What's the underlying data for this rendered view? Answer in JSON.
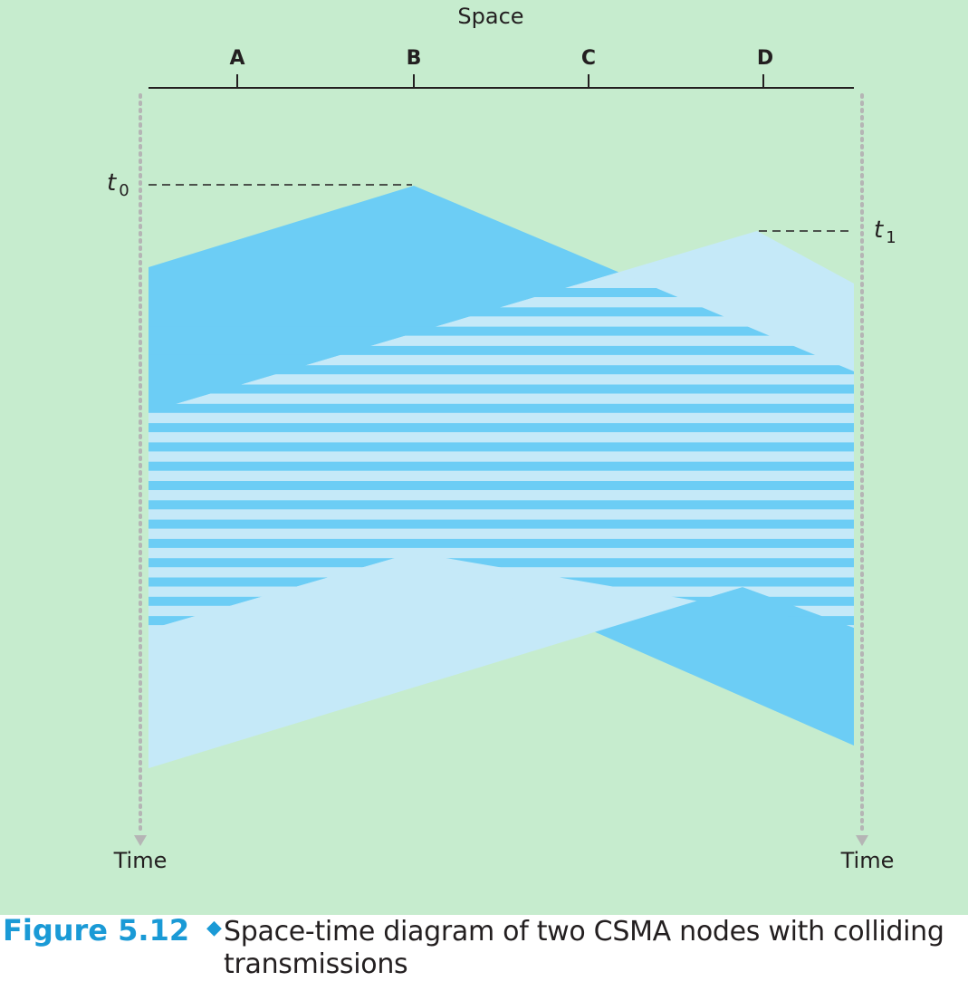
{
  "diagram": {
    "space_label": "Space",
    "nodes": [
      "A",
      "B",
      "C",
      "D"
    ],
    "time_label_left": "Time",
    "time_label_right": "Time",
    "t0": {
      "base": "t",
      "sub": "0"
    },
    "t1": {
      "base": "t",
      "sub": "1"
    },
    "colors": {
      "background": "#c6ecce",
      "transmission_B": "#6ccdf5",
      "transmission_D": "#c5e9f8",
      "time_axis": "#b5b5b5"
    }
  },
  "caption": {
    "number": "Figure 5.12",
    "separator_icon": "diamond-icon",
    "text": "Space-time diagram of two CSMA nodes with colliding transmissions"
  }
}
